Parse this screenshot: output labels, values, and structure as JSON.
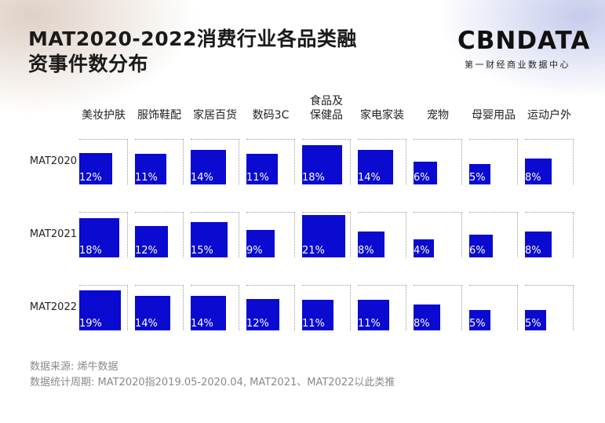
{
  "title_line1": "MAT2020-2022消费行业各品类融",
  "title_line2": "资事件数分布",
  "brand_logo": "CBNDATA",
  "brand_sub": "第一财经商业数据中心",
  "colors": {
    "bar": "#0a0ad0",
    "grid": "#9a9a9a"
  },
  "chart_data": {
    "type": "bar",
    "categories": [
      "美妆护肤",
      "服饰鞋配",
      "家居百货",
      "数码3C",
      "食品及保健品",
      "家电家装",
      "宠物",
      "母婴用品",
      "运动户外"
    ],
    "category_lines": [
      [
        "美妆护肤"
      ],
      [
        "服饰鞋配"
      ],
      [
        "家居百货"
      ],
      [
        "数码3C"
      ],
      [
        "食品及",
        "保健品"
      ],
      [
        "家电家装"
      ],
      [
        "宠物"
      ],
      [
        "母婴用品"
      ],
      [
        "运动户外"
      ]
    ],
    "series": [
      {
        "name": "MAT2020",
        "values": [
          12,
          11,
          14,
          11,
          18,
          14,
          6,
          5,
          8
        ]
      },
      {
        "name": "MAT2021",
        "values": [
          18,
          12,
          15,
          9,
          21,
          8,
          4,
          6,
          8
        ]
      },
      {
        "name": "MAT2022",
        "values": [
          19,
          14,
          14,
          12,
          11,
          11,
          8,
          5,
          5
        ]
      }
    ],
    "value_suffix": "%",
    "ylim": [
      0,
      23
    ]
  },
  "footer": {
    "source": "数据来源: 烯牛数据",
    "period": "数据统计周期: MAT2020指2019.05-2020.04, MAT2021、MAT2022以此类推"
  }
}
